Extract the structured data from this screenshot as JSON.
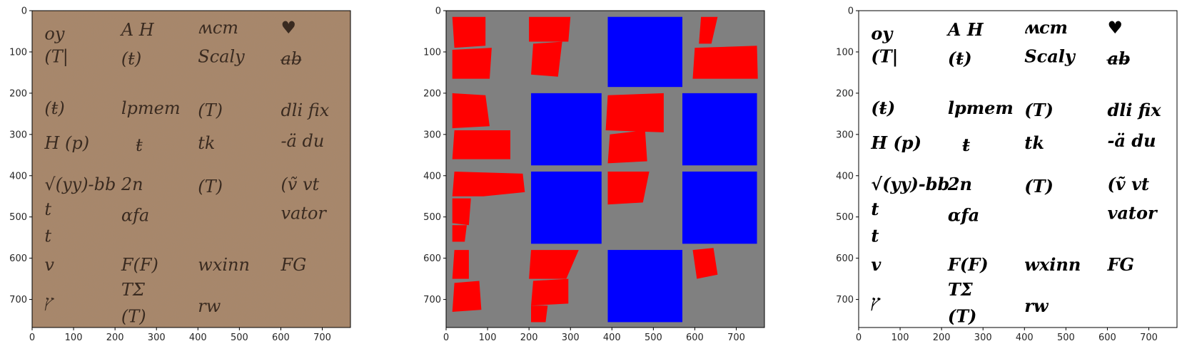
{
  "figure": {
    "panels": [
      {
        "name": "source-document-panel",
        "kind": "image",
        "description_text": "",
        "xticks": [
          "0",
          "100",
          "200",
          "300",
          "400",
          "500",
          "600",
          "700"
        ],
        "yticks": [
          "0",
          "100",
          "200",
          "300",
          "400",
          "500",
          "600",
          "700"
        ],
        "xlim": [
          0,
          768
        ],
        "ylim": [
          768,
          0
        ],
        "glyphs": [
          {
            "text": "oy",
            "x": 30,
            "y": 70
          },
          {
            "text": "A H",
            "x": 215,
            "y": 60
          },
          {
            "text": "ʍcm",
            "x": 400,
            "y": 55
          },
          {
            "text": "♥",
            "x": 600,
            "y": 55
          },
          {
            "text": "(T|",
            "x": 30,
            "y": 125
          },
          {
            "text": "(ŧ)",
            "x": 215,
            "y": 130
          },
          {
            "text": "Scaly",
            "x": 400,
            "y": 125
          },
          {
            "text": "a̶b̶",
            "x": 600,
            "y": 130
          },
          {
            "text": "(ŧ)",
            "x": 30,
            "y": 250
          },
          {
            "text": "lpmem",
            "x": 215,
            "y": 250
          },
          {
            "text": "(T)",
            "x": 400,
            "y": 255
          },
          {
            "text": "dli fix",
            "x": 600,
            "y": 255
          },
          {
            "text": "H (p)",
            "x": 30,
            "y": 335
          },
          {
            "text": "ŧ",
            "x": 250,
            "y": 340
          },
          {
            "text": "tk",
            "x": 400,
            "y": 335
          },
          {
            "text": "-ä du",
            "x": 600,
            "y": 330
          },
          {
            "text": "√(yy)-bb",
            "x": 30,
            "y": 435
          },
          {
            "text": "2n",
            "x": 215,
            "y": 435
          },
          {
            "text": "(T)",
            "x": 400,
            "y": 440
          },
          {
            "text": "(ṽ vt",
            "x": 600,
            "y": 435
          },
          {
            "text": "t",
            "x": 30,
            "y": 495
          },
          {
            "text": "ɑfa",
            "x": 215,
            "y": 510
          },
          {
            "text": "vator",
            "x": 600,
            "y": 505
          },
          {
            "text": "t",
            "x": 30,
            "y": 560
          },
          {
            "text": "v",
            "x": 30,
            "y": 630
          },
          {
            "text": "F(F)",
            "x": 215,
            "y": 630
          },
          {
            "text": "wxinn",
            "x": 400,
            "y": 630
          },
          {
            "text": "FG",
            "x": 600,
            "y": 630
          },
          {
            "text": "ץ",
            "x": 30,
            "y": 720
          },
          {
            "text": "TΣ",
            "x": 215,
            "y": 690
          },
          {
            "text": "rw",
            "x": 400,
            "y": 730
          },
          {
            "text": "(T)",
            "x": 215,
            "y": 755
          }
        ]
      },
      {
        "name": "segmentation-mask-panel",
        "kind": "mask",
        "xticks": [
          "0",
          "100",
          "200",
          "300",
          "400",
          "500",
          "600",
          "700"
        ],
        "yticks": [
          "0",
          "100",
          "200",
          "300",
          "400",
          "500",
          "600",
          "700"
        ],
        "xlim": [
          0,
          768
        ],
        "ylim": [
          768,
          0
        ],
        "colors": {
          "background": "#808080",
          "text_region": "#ff0000",
          "empty_cell": "#0000ff"
        },
        "red_regions": [
          [
            [
              15,
              15
            ],
            [
              95,
              15
            ],
            [
              95,
              85
            ],
            [
              20,
              90
            ]
          ],
          [
            [
              15,
              95
            ],
            [
              110,
              90
            ],
            [
              105,
              165
            ],
            [
              15,
              165
            ]
          ],
          [
            [
              200,
              15
            ],
            [
              300,
              15
            ],
            [
              295,
              75
            ],
            [
              200,
              75
            ]
          ],
          [
            [
              210,
              80
            ],
            [
              280,
              75
            ],
            [
              270,
              160
            ],
            [
              205,
              155
            ]
          ],
          [
            [
              615,
              15
            ],
            [
              655,
              15
            ],
            [
              640,
              80
            ],
            [
              610,
              80
            ]
          ],
          [
            [
              600,
              90
            ],
            [
              750,
              85
            ],
            [
              752,
              165
            ],
            [
              595,
              165
            ]
          ],
          [
            [
              15,
              200
            ],
            [
              95,
              205
            ],
            [
              105,
              280
            ],
            [
              15,
              285
            ]
          ],
          [
            [
              20,
              290
            ],
            [
              155,
              290
            ],
            [
              155,
              360
            ],
            [
              15,
              360
            ]
          ],
          [
            [
              390,
              205
            ],
            [
              525,
              200
            ],
            [
              525,
              295
            ],
            [
              385,
              290
            ]
          ],
          [
            [
              395,
              300
            ],
            [
              480,
              290
            ],
            [
              485,
              365
            ],
            [
              390,
              370
            ]
          ],
          [
            [
              20,
              390
            ],
            [
              185,
              395
            ],
            [
              190,
              440
            ],
            [
              90,
              450
            ],
            [
              15,
              450
            ]
          ],
          [
            [
              15,
              455
            ],
            [
              60,
              455
            ],
            [
              55,
              520
            ],
            [
              15,
              515
            ]
          ],
          [
            [
              15,
              520
            ],
            [
              50,
              520
            ],
            [
              45,
              560
            ],
            [
              15,
              560
            ]
          ],
          [
            [
              390,
              390
            ],
            [
              490,
              390
            ],
            [
              475,
              465
            ],
            [
              390,
              470
            ]
          ],
          [
            [
              20,
              580
            ],
            [
              55,
              580
            ],
            [
              55,
              650
            ],
            [
              15,
              650
            ]
          ],
          [
            [
              20,
              660
            ],
            [
              80,
              655
            ],
            [
              85,
              725
            ],
            [
              15,
              730
            ]
          ],
          [
            [
              205,
              580
            ],
            [
              320,
              580
            ],
            [
              290,
              650
            ],
            [
              200,
              650
            ]
          ],
          [
            [
              210,
              655
            ],
            [
              295,
              650
            ],
            [
              295,
              710
            ],
            [
              205,
              715
            ]
          ],
          [
            [
              205,
              715
            ],
            [
              245,
              715
            ],
            [
              240,
              755
            ],
            [
              205,
              755
            ]
          ],
          [
            [
              595,
              580
            ],
            [
              645,
              575
            ],
            [
              655,
              640
            ],
            [
              605,
              650
            ]
          ]
        ],
        "blue_regions": [
          [
            390,
            15,
            570,
            185
          ],
          [
            205,
            200,
            375,
            375
          ],
          [
            570,
            200,
            750,
            375
          ],
          [
            205,
            390,
            375,
            565
          ],
          [
            570,
            390,
            750,
            565
          ],
          [
            390,
            580,
            570,
            755
          ]
        ]
      },
      {
        "name": "binarized-document-panel",
        "kind": "image",
        "xticks": [
          "0",
          "100",
          "200",
          "300",
          "400",
          "500",
          "600",
          "700"
        ],
        "yticks": [
          "0",
          "100",
          "200",
          "300",
          "400",
          "500",
          "600",
          "700"
        ],
        "xlim": [
          0,
          768
        ],
        "ylim": [
          768,
          0
        ]
      }
    ]
  }
}
